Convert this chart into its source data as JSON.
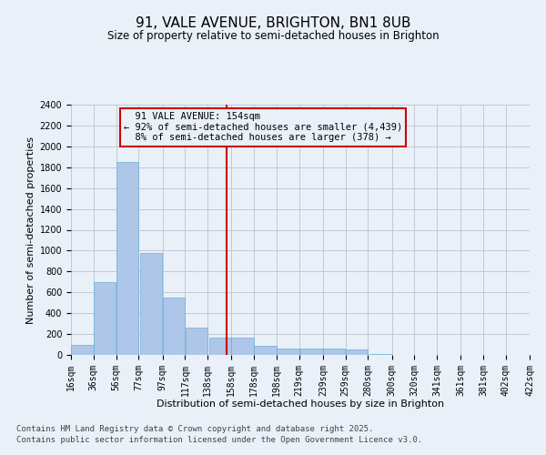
{
  "title": "91, VALE AVENUE, BRIGHTON, BN1 8UB",
  "subtitle": "Size of property relative to semi-detached houses in Brighton",
  "xlabel": "Distribution of semi-detached houses by size in Brighton",
  "ylabel": "Number of semi-detached properties",
  "property_label": "91 VALE AVENUE: 154sqm",
  "pct_smaller": 92,
  "count_smaller": 4439,
  "pct_larger": 8,
  "count_larger": 378,
  "bins_left": [
    16,
    36,
    56,
    77,
    97,
    117,
    138,
    158,
    178,
    198,
    219,
    239,
    259,
    280,
    300,
    320,
    341,
    361,
    381,
    402
  ],
  "bin_width": 20,
  "bar_heights": [
    100,
    700,
    1850,
    975,
    550,
    260,
    165,
    170,
    90,
    65,
    65,
    65,
    55,
    10,
    0,
    0,
    0,
    0,
    0,
    0
  ],
  "bar_color": "#aec6e8",
  "bar_edge_color": "#6baed6",
  "vline_color": "#cc0000",
  "vline_x": 154,
  "annotation_box_color": "#cc0000",
  "grid_color": "#c0c8d8",
  "bg_color": "#eaf0f8",
  "ylim": [
    0,
    2400
  ],
  "yticks": [
    0,
    200,
    400,
    600,
    800,
    1000,
    1200,
    1400,
    1600,
    1800,
    2000,
    2200,
    2400
  ],
  "tick_labels": [
    "16sqm",
    "36sqm",
    "56sqm",
    "77sqm",
    "97sqm",
    "117sqm",
    "138sqm",
    "158sqm",
    "178sqm",
    "198sqm",
    "219sqm",
    "239sqm",
    "259sqm",
    "280sqm",
    "300sqm",
    "320sqm",
    "341sqm",
    "361sqm",
    "381sqm",
    "402sqm",
    "422sqm"
  ],
  "footer": "Contains HM Land Registry data © Crown copyright and database right 2025.\nContains public sector information licensed under the Open Government Licence v3.0.",
  "title_fontsize": 11,
  "subtitle_fontsize": 8.5,
  "axis_label_fontsize": 8,
  "tick_fontsize": 7,
  "annotation_fontsize": 7.5,
  "footer_fontsize": 6.5
}
